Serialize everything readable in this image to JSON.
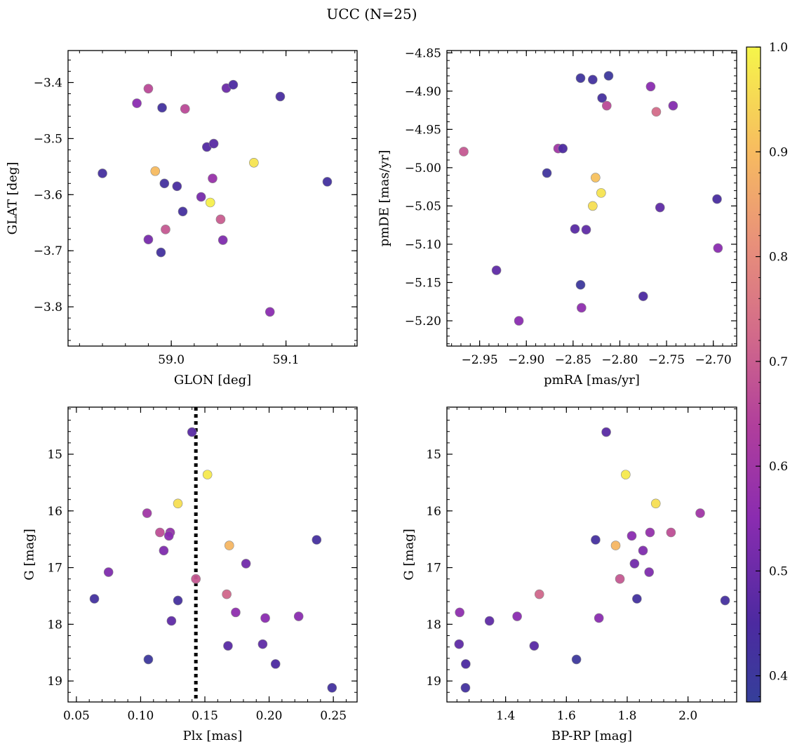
{
  "title": "UCC (N=25)",
  "colorbar": {
    "range": [
      0.375,
      1.0
    ],
    "ticks": [
      0.4,
      0.5,
      0.6,
      0.7,
      0.8,
      0.9,
      1.0
    ],
    "tick_labels": [
      "0.4",
      "0.5",
      "0.6",
      "0.7",
      "0.8",
      "0.9",
      "1.0"
    ],
    "colormap": "plasma"
  },
  "chart_data": [
    {
      "type": "scatter",
      "xlabel": "GLON [deg]",
      "ylabel": "GLAT [deg]",
      "xlim": [
        58.91,
        59.162
      ],
      "ylim": [
        -3.87,
        -3.343
      ],
      "xticks": [
        59.0,
        59.1
      ],
      "xtick_labels": [
        "59.0",
        "59.1"
      ],
      "yticks": [
        -3.4,
        -3.5,
        -3.6,
        -3.7,
        -3.8
      ],
      "ytick_labels": [
        "−3.4",
        "−3.5",
        "−3.6",
        "−3.7",
        "−3.8"
      ],
      "x": [
        58.97,
        58.98,
        58.992,
        59.012,
        59.048,
        59.054,
        59.095,
        58.94,
        58.986,
        58.994,
        59.005,
        59.031,
        59.037,
        59.036,
        59.072,
        59.136,
        59.026,
        59.034,
        59.01,
        59.043,
        58.995,
        58.98,
        59.045,
        58.991,
        59.086
      ],
      "y": [
        -3.437,
        -3.411,
        -3.445,
        -3.447,
        -3.41,
        -3.404,
        -3.425,
        -3.562,
        -3.558,
        -3.58,
        -3.585,
        -3.515,
        -3.509,
        -3.571,
        -3.543,
        -3.577,
        -3.604,
        -3.614,
        -3.63,
        -3.644,
        -3.662,
        -3.68,
        -3.681,
        -3.703,
        -3.809
      ],
      "c": [
        0.55,
        0.66,
        0.42,
        0.66,
        0.5,
        0.45,
        0.44,
        0.43,
        0.9,
        0.42,
        0.44,
        0.46,
        0.47,
        0.58,
        0.97,
        0.42,
        0.52,
        0.99,
        0.43,
        0.7,
        0.69,
        0.52,
        0.53,
        0.42,
        0.55
      ]
    },
    {
      "type": "scatter",
      "xlabel": "pmRA [mas/yr]",
      "ylabel": "pmDE [mas/yr]",
      "xlim": [
        -2.985,
        -2.675
      ],
      "ylim": [
        -5.233,
        -4.847
      ],
      "xticks": [
        -2.95,
        -2.9,
        -2.85,
        -2.8,
        -2.75,
        -2.7
      ],
      "xtick_labels": [
        "−2.95",
        "−2.90",
        "−2.85",
        "−2.80",
        "−2.75",
        "−2.70"
      ],
      "yticks": [
        -4.85,
        -4.9,
        -4.95,
        -5.0,
        -5.05,
        -5.1,
        -5.15,
        -5.2
      ],
      "ytick_labels": [
        "−4.85",
        "−4.90",
        "−4.95",
        "−5.00",
        "−5.05",
        "−5.10",
        "−5.15",
        "−5.20"
      ],
      "x": [
        -2.842,
        -2.829,
        -2.812,
        -2.819,
        -2.814,
        -2.767,
        -2.743,
        -2.761,
        -2.967,
        -2.866,
        -2.861,
        -2.878,
        -2.826,
        -2.82,
        -2.829,
        -2.696,
        -2.757,
        -2.848,
        -2.836,
        -2.695,
        -2.932,
        -2.775,
        -2.842,
        -2.841,
        -2.908
      ],
      "y": [
        -4.883,
        -4.885,
        -4.88,
        -4.909,
        -4.919,
        -4.894,
        -4.919,
        -4.927,
        -4.979,
        -4.975,
        -4.975,
        -5.007,
        -5.013,
        -5.033,
        -5.05,
        -5.041,
        -5.052,
        -5.08,
        -5.081,
        -5.105,
        -5.134,
        -5.168,
        -5.153,
        -5.183,
        -5.2
      ],
      "c": [
        0.41,
        0.42,
        0.4,
        0.43,
        0.66,
        0.55,
        0.54,
        0.73,
        0.69,
        0.6,
        0.45,
        0.41,
        0.91,
        0.97,
        0.96,
        0.44,
        0.48,
        0.47,
        0.48,
        0.55,
        0.48,
        0.45,
        0.4,
        0.56,
        0.55
      ]
    },
    {
      "type": "scatter",
      "xlabel": "Plx [mas]",
      "ylabel": "G [mag]",
      "xlim": [
        0.0435,
        0.2685
      ],
      "ylim": [
        19.37,
        14.17
      ],
      "xticks": [
        0.05,
        0.1,
        0.15,
        0.2,
        0.25
      ],
      "xtick_labels": [
        "0.05",
        "0.10",
        "0.15",
        "0.20",
        "0.25"
      ],
      "yticks": [
        15,
        16,
        17,
        18,
        19
      ],
      "ytick_labels": [
        "15",
        "16",
        "17",
        "18",
        "19"
      ],
      "vline": {
        "x": 0.143,
        "style": "dotted"
      },
      "x": [
        0.14,
        0.152,
        0.129,
        0.105,
        0.115,
        0.123,
        0.122,
        0.237,
        0.169,
        0.118,
        0.182,
        0.075,
        0.143,
        0.167,
        0.064,
        0.129,
        0.174,
        0.197,
        0.223,
        0.124,
        0.168,
        0.195,
        0.106,
        0.205,
        0.249
      ],
      "y": [
        14.61,
        15.36,
        15.87,
        16.04,
        16.38,
        16.38,
        16.44,
        16.51,
        16.61,
        16.7,
        16.93,
        17.08,
        17.2,
        17.47,
        17.55,
        17.58,
        17.79,
        17.89,
        17.86,
        17.94,
        18.38,
        18.35,
        18.62,
        18.7,
        19.12
      ],
      "c": [
        0.47,
        0.98,
        0.96,
        0.6,
        0.67,
        0.57,
        0.55,
        0.43,
        0.89,
        0.53,
        0.51,
        0.53,
        0.69,
        0.72,
        0.42,
        0.43,
        0.56,
        0.55,
        0.55,
        0.48,
        0.47,
        0.48,
        0.4,
        0.45,
        0.42
      ]
    },
    {
      "type": "scatter",
      "xlabel": "BP-RP [mag]",
      "ylabel": "G [mag]",
      "xlim": [
        1.207,
        2.16
      ],
      "ylim": [
        19.37,
        14.17
      ],
      "xticks": [
        1.4,
        1.6,
        1.8,
        2.0
      ],
      "xtick_labels": [
        "1.4",
        "1.6",
        "1.8",
        "2.0"
      ],
      "yticks": [
        15,
        16,
        17,
        18,
        19
      ],
      "ytick_labels": [
        "15",
        "16",
        "17",
        "18",
        "19"
      ],
      "x": [
        1.731,
        1.795,
        1.894,
        2.04,
        1.944,
        1.875,
        1.815,
        1.696,
        1.762,
        1.852,
        1.824,
        1.872,
        1.776,
        1.511,
        1.832,
        2.122,
        1.249,
        1.707,
        1.438,
        1.347,
        1.494,
        1.247,
        1.633,
        1.269,
        1.268
      ],
      "y": [
        14.61,
        15.36,
        15.87,
        16.04,
        16.38,
        16.38,
        16.44,
        16.51,
        16.61,
        16.7,
        16.93,
        17.08,
        17.2,
        17.47,
        17.55,
        17.58,
        17.79,
        17.89,
        17.86,
        17.94,
        18.38,
        18.35,
        18.62,
        18.7,
        19.12
      ],
      "c": [
        0.47,
        0.98,
        0.96,
        0.6,
        0.67,
        0.57,
        0.55,
        0.43,
        0.89,
        0.53,
        0.51,
        0.53,
        0.69,
        0.72,
        0.42,
        0.43,
        0.56,
        0.55,
        0.55,
        0.48,
        0.47,
        0.48,
        0.4,
        0.45,
        0.42
      ]
    }
  ]
}
